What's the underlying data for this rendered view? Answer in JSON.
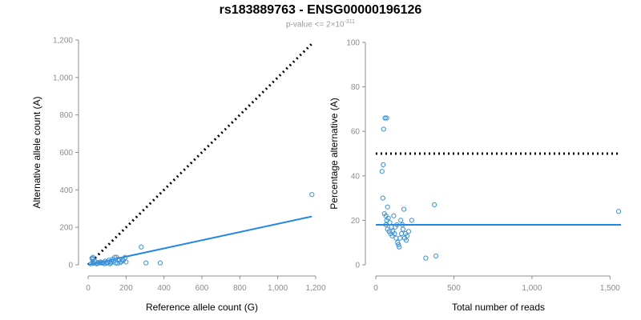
{
  "header": {
    "title": "rs183889763 - ENSG00000196126",
    "subtitle_prefix": "p-value <= 2×10",
    "subtitle_exponent": "-311"
  },
  "colors": {
    "points": "#3b92d8",
    "fit": "#1f86e6",
    "reference": "#000000",
    "axis": "#8c8c8c"
  },
  "chart_data": [
    {
      "type": "scatter",
      "title": "",
      "xlabel": "Reference allele count (G)",
      "ylabel": "Alternative allele count (A)",
      "xlim": [
        0,
        1200
      ],
      "ylim": [
        0,
        1200
      ],
      "xticks": [
        0,
        200,
        400,
        600,
        800,
        1000,
        1200
      ],
      "yticks": [
        0,
        200,
        400,
        600,
        800,
        1000,
        1200
      ],
      "xtick_labels": [
        "0",
        "200",
        "400",
        "600",
        "800",
        "1,000",
        "1,200"
      ],
      "ytick_labels": [
        "0",
        "200",
        "400",
        "600",
        "800",
        "1,000",
        "1,200"
      ],
      "x": [
        1180,
        280,
        305,
        380,
        195,
        150,
        140,
        120,
        130,
        110,
        100,
        90,
        80,
        70,
        60,
        50,
        40,
        35,
        30,
        25,
        20,
        45,
        55,
        65,
        75,
        85,
        95,
        105,
        115,
        125,
        135,
        145,
        155,
        165,
        175,
        185,
        160,
        170,
        200,
        180,
        15,
        25,
        22
      ],
      "y": [
        375,
        95,
        10,
        10,
        40,
        40,
        40,
        10,
        30,
        25,
        15,
        20,
        12,
        10,
        10,
        8,
        15,
        20,
        8,
        40,
        35,
        5,
        12,
        15,
        10,
        6,
        8,
        12,
        5,
        15,
        20,
        10,
        8,
        25,
        18,
        22,
        30,
        12,
        15,
        28,
        5,
        10,
        30
      ],
      "fit_line": {
        "x": [
          0,
          1180
        ],
        "y": [
          0,
          258
        ]
      },
      "reference_line": {
        "x": [
          0,
          1180
        ],
        "y": [
          0,
          1180
        ]
      }
    },
    {
      "type": "scatter",
      "title": "",
      "xlabel": "Total number of reads",
      "ylabel": "Percentage alternative (A)",
      "xlim": [
        0,
        1570
      ],
      "ylim": [
        0,
        100
      ],
      "xticks": [
        0,
        500,
        1000,
        1500
      ],
      "yticks": [
        0,
        20,
        40,
        60,
        80,
        100
      ],
      "xtick_labels": [
        "0",
        "500",
        "1,000",
        "1,500"
      ],
      "ytick_labels": [
        "0",
        "20",
        "40",
        "60",
        "80",
        "100"
      ],
      "x": [
        1555,
        375,
        385,
        320,
        60,
        60,
        70,
        75,
        50,
        40,
        48,
        45,
        55,
        65,
        80,
        90,
        100,
        110,
        120,
        130,
        140,
        150,
        160,
        170,
        180,
        190,
        200,
        210,
        230,
        75,
        85,
        95,
        105,
        115,
        125,
        135,
        145,
        155,
        165,
        175,
        185,
        65,
        70,
        195
      ],
      "y": [
        24,
        27,
        4,
        3,
        66,
        66,
        66,
        26,
        61,
        42,
        45,
        30,
        23,
        22,
        21,
        19,
        17,
        15,
        14,
        12,
        10,
        8,
        20,
        18,
        25,
        14,
        13,
        15,
        20,
        16,
        15,
        14,
        13,
        22,
        17,
        18,
        9,
        12,
        14,
        16,
        12,
        18,
        20,
        11
      ],
      "fit_line": {
        "x": [
          0,
          1570
        ],
        "y": [
          18,
          18
        ]
      },
      "reference_line": {
        "x": [
          0,
          1570
        ],
        "y": [
          50,
          50
        ]
      }
    }
  ]
}
